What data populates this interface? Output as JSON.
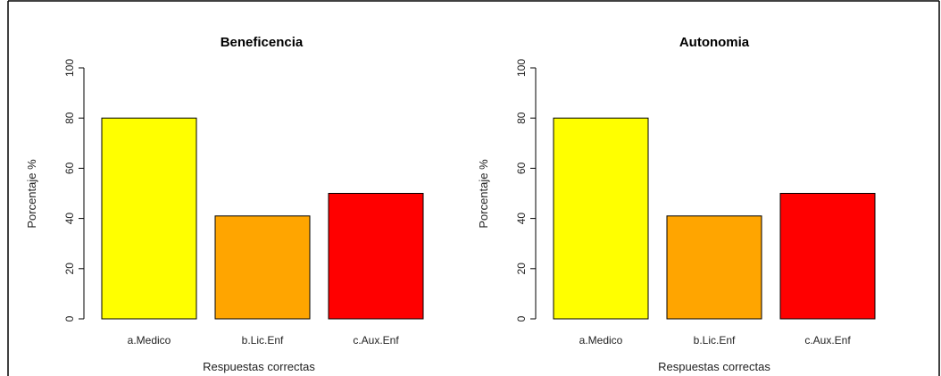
{
  "chart_data": [
    {
      "type": "bar",
      "title": "Beneficencia",
      "xlabel": "Respuestas correctas",
      "ylabel": "Porcentaje %",
      "categories": [
        "a.Medico",
        "b.Lic.Enf",
        "c.Aux.Enf"
      ],
      "values": [
        80,
        41,
        50
      ],
      "colors": [
        "#FFFF00",
        "#FFA500",
        "#FF0000"
      ],
      "ylim": [
        0,
        100
      ],
      "yticks": [
        "0",
        "20",
        "40",
        "60",
        "80",
        "100"
      ],
      "grid": false
    },
    {
      "type": "bar",
      "title": "Autonomia",
      "xlabel": "Respuestas correctas",
      "ylabel": "Porcentaje %",
      "categories": [
        "a.Medico",
        "b.Lic.Enf",
        "c.Aux.Enf"
      ],
      "values": [
        80,
        41,
        50
      ],
      "colors": [
        "#FFFF00",
        "#FFA500",
        "#FF0000"
      ],
      "ylim": [
        0,
        100
      ],
      "yticks": [
        "0",
        "20",
        "40",
        "60",
        "80",
        "100"
      ],
      "grid": false
    }
  ]
}
